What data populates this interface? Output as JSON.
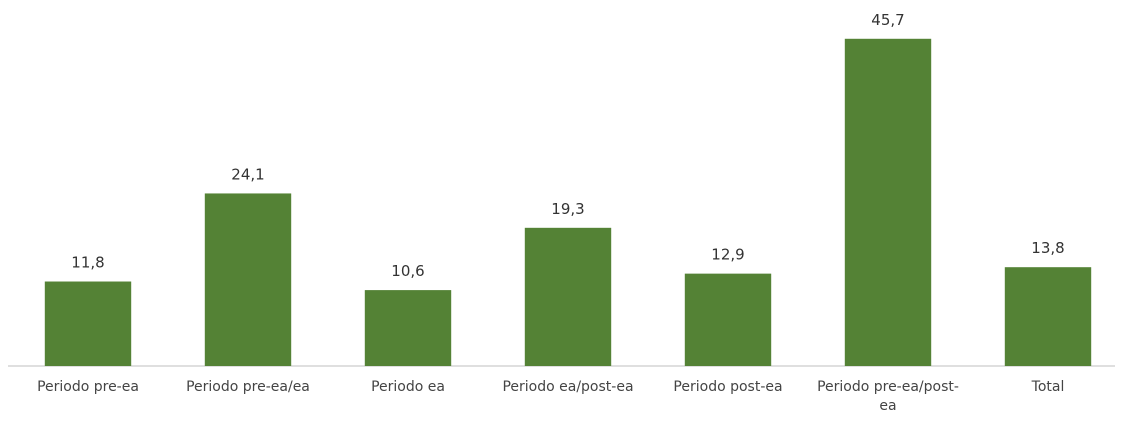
{
  "chart_data": {
    "type": "bar",
    "categories": [
      "Periodo pre-ea",
      "Periodo pre-ea/ea",
      "Periodo ea",
      "Periodo ea/post-ea",
      "Periodo post-ea",
      "Periodo pre-ea/post-ea",
      "Total"
    ],
    "values": [
      11.8,
      24.1,
      10.6,
      19.3,
      12.9,
      45.7,
      13.8
    ],
    "value_labels": [
      "11,8",
      "24,1",
      "10,6",
      "19,3",
      "12,9",
      "45,7",
      "13,8"
    ],
    "color": "#548235",
    "ylim": [
      0,
      50
    ]
  }
}
